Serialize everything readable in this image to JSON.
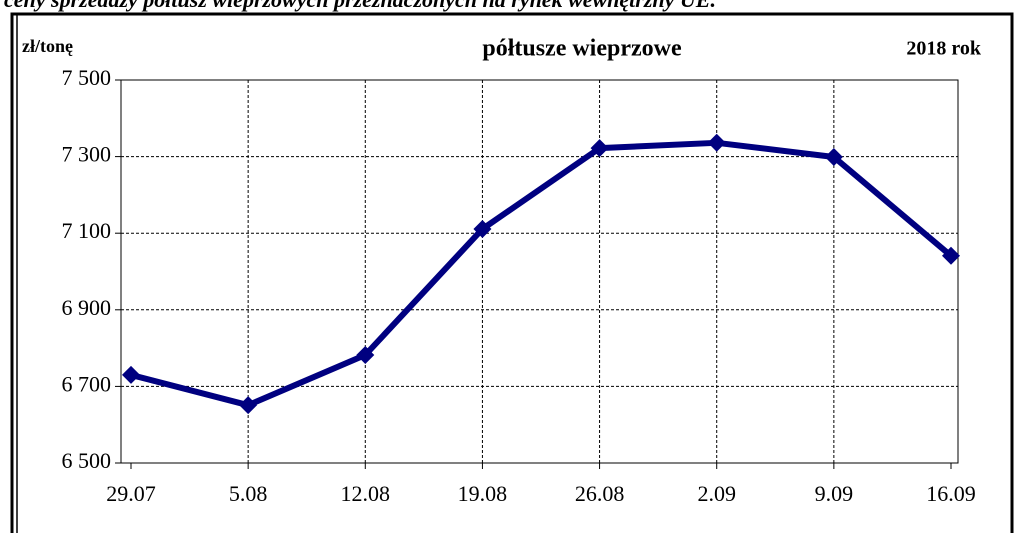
{
  "caption": "ceny sprzedaży półtusz wieprzowych przeznaczonych na rynek wewnętrzny UE.",
  "chart_data": {
    "type": "line",
    "title": "półtusze wieprzowe",
    "y_label": "zł/tonę",
    "annotation": "2018 rok",
    "categories": [
      "29.07",
      "5.08",
      "12.08",
      "19.08",
      "26.08",
      "2.09",
      "9.09",
      "16.09"
    ],
    "series": [
      {
        "name": "półtusze wieprzowe",
        "color": "#000080",
        "values": [
          6730,
          6651,
          6782,
          7111,
          7322,
          7336,
          7299,
          7041
        ]
      }
    ],
    "ylim": [
      6500,
      7500
    ],
    "yticks": [
      {
        "value": 6500,
        "label": "6 500"
      },
      {
        "value": 6700,
        "label": "6 700"
      },
      {
        "value": 6900,
        "label": "6 900"
      },
      {
        "value": 7100,
        "label": "7 100"
      },
      {
        "value": 7300,
        "label": "7 300"
      },
      {
        "value": 7500,
        "label": "7 500"
      }
    ],
    "grid": true
  }
}
